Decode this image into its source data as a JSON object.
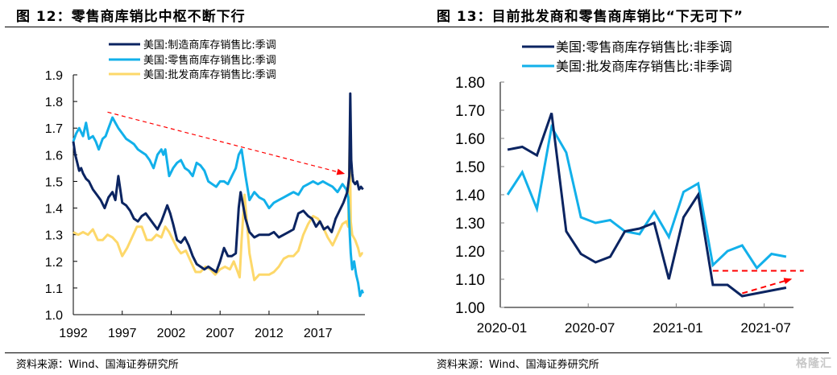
{
  "figures": [
    {
      "title": "图 12：零售商库销比中枢不断下行",
      "source": "资料来源：Wind、国海证券研究所"
    },
    {
      "title": "图 13：目前批发商和零售商库销比“下无可下”",
      "source": "资料来源：Wind、国海证券研究所"
    }
  ],
  "watermark": "格隆汇",
  "colors": {
    "navy": "#0b2461",
    "light_blue": "#12b0ea",
    "yellow": "#fdd86a",
    "red": "#ff0000",
    "axis": "#000000",
    "axis_right": "#7f7f7f"
  },
  "chart_data": [
    {
      "type": "line",
      "title": "图 12：零售商库销比中枢不断下行",
      "xlabel": "",
      "ylabel": "",
      "xlim": [
        1992,
        2021.8
      ],
      "ylim": [
        1.0,
        1.9
      ],
      "yticks": [
        "1.0",
        "1.1",
        "1.2",
        "1.3",
        "1.4",
        "1.5",
        "1.6",
        "1.7",
        "1.8",
        "1.9"
      ],
      "xticks": [
        "1992",
        "1997",
        "2002",
        "2007",
        "2012",
        "2017"
      ],
      "xtick_values": [
        1992,
        1997,
        2002,
        2007,
        2012,
        2017
      ],
      "grid": false,
      "legend_position": "top-center",
      "series": [
        {
          "name": "美国:制造商库存销售比:季调",
          "color_key": "navy",
          "x": [
            1992.0,
            1992.2,
            1992.4,
            1992.6,
            1992.8,
            1993.0,
            1993.3,
            1993.6,
            1994.0,
            1994.4,
            1994.8,
            1995.2,
            1995.6,
            1996.0,
            1996.3,
            1996.6,
            1997.0,
            1997.4,
            1997.8,
            1998.2,
            1998.6,
            1999.0,
            1999.4,
            1999.8,
            2000.2,
            2000.6,
            2001.0,
            2001.3,
            2001.6,
            2001.9,
            2002.2,
            2002.6,
            2003.0,
            2003.4,
            2003.8,
            2004.2,
            2004.6,
            2005.0,
            2005.4,
            2005.8,
            2006.2,
            2006.6,
            2007.0,
            2007.4,
            2007.8,
            2008.2,
            2008.6,
            2008.9,
            2009.1,
            2009.3,
            2009.6,
            2010.0,
            2010.5,
            2011.0,
            2011.5,
            2012.0,
            2012.5,
            2013.0,
            2013.5,
            2014.0,
            2014.5,
            2015.0,
            2015.5,
            2016.0,
            2016.4,
            2016.8,
            2017.2,
            2017.6,
            2018.0,
            2018.4,
            2018.8,
            2019.2,
            2019.6,
            2020.0,
            2020.2,
            2020.3,
            2020.4,
            2020.5,
            2020.6,
            2020.8,
            2021.0,
            2021.2,
            2021.4,
            2021.6
          ],
          "values": [
            1.65,
            1.6,
            1.57,
            1.54,
            1.55,
            1.53,
            1.51,
            1.5,
            1.47,
            1.45,
            1.43,
            1.4,
            1.44,
            1.46,
            1.43,
            1.52,
            1.42,
            1.41,
            1.39,
            1.36,
            1.35,
            1.37,
            1.38,
            1.36,
            1.34,
            1.32,
            1.35,
            1.38,
            1.41,
            1.38,
            1.34,
            1.28,
            1.27,
            1.29,
            1.26,
            1.22,
            1.19,
            1.18,
            1.17,
            1.18,
            1.17,
            1.16,
            1.2,
            1.25,
            1.22,
            1.22,
            1.23,
            1.4,
            1.46,
            1.42,
            1.36,
            1.31,
            1.29,
            1.3,
            1.3,
            1.3,
            1.31,
            1.29,
            1.3,
            1.31,
            1.32,
            1.38,
            1.39,
            1.37,
            1.36,
            1.33,
            1.35,
            1.32,
            1.33,
            1.31,
            1.36,
            1.39,
            1.42,
            1.46,
            1.52,
            1.83,
            1.58,
            1.53,
            1.5,
            1.49,
            1.5,
            1.47,
            1.48,
            1.47
          ]
        },
        {
          "name": "美国:零售商库存销售比:季调",
          "color_key": "light_blue",
          "x": [
            1992.0,
            1992.3,
            1992.6,
            1993.0,
            1993.3,
            1993.6,
            1994.0,
            1994.3,
            1994.6,
            1995.0,
            1995.3,
            1995.6,
            1996.0,
            1996.3,
            1996.6,
            1997.0,
            1997.4,
            1997.8,
            1998.2,
            1998.6,
            1999.0,
            1999.4,
            1999.8,
            2000.2,
            2000.6,
            2001.0,
            2001.2,
            2001.4,
            2001.8,
            2002.2,
            2002.6,
            2003.0,
            2003.4,
            2003.8,
            2004.2,
            2004.6,
            2005.0,
            2005.4,
            2005.8,
            2006.2,
            2006.6,
            2007.0,
            2007.4,
            2007.8,
            2008.2,
            2008.6,
            2008.9,
            2009.2,
            2009.6,
            2010.0,
            2010.5,
            2011.0,
            2011.5,
            2012.0,
            2012.5,
            2013.0,
            2013.5,
            2014.0,
            2014.5,
            2015.0,
            2015.5,
            2016.0,
            2016.5,
            2017.0,
            2017.5,
            2018.0,
            2018.5,
            2019.0,
            2019.5,
            2019.9,
            2020.1,
            2020.25,
            2020.35,
            2020.5,
            2020.7,
            2020.9,
            2021.1,
            2021.3,
            2021.5,
            2021.6
          ],
          "values": [
            1.65,
            1.68,
            1.7,
            1.67,
            1.72,
            1.66,
            1.67,
            1.65,
            1.62,
            1.66,
            1.67,
            1.7,
            1.74,
            1.72,
            1.7,
            1.68,
            1.66,
            1.65,
            1.64,
            1.62,
            1.61,
            1.6,
            1.58,
            1.55,
            1.6,
            1.62,
            1.6,
            1.62,
            1.52,
            1.55,
            1.57,
            1.58,
            1.55,
            1.54,
            1.52,
            1.57,
            1.56,
            1.54,
            1.5,
            1.49,
            1.48,
            1.5,
            1.5,
            1.49,
            1.52,
            1.55,
            1.6,
            1.62,
            1.52,
            1.43,
            1.46,
            1.44,
            1.43,
            1.4,
            1.42,
            1.43,
            1.44,
            1.45,
            1.46,
            1.45,
            1.48,
            1.49,
            1.5,
            1.49,
            1.5,
            1.49,
            1.48,
            1.46,
            1.49,
            1.47,
            1.44,
            1.3,
            1.23,
            1.17,
            1.2,
            1.15,
            1.12,
            1.07,
            1.09,
            1.08
          ]
        },
        {
          "name": "美国:批发商库存销售比:季调",
          "color_key": "yellow",
          "x": [
            1992.0,
            1992.5,
            1993.0,
            1993.5,
            1994.0,
            1994.5,
            1995.0,
            1995.5,
            1996.0,
            1996.5,
            1997.0,
            1997.5,
            1998.0,
            1998.5,
            1999.0,
            1999.5,
            2000.0,
            2000.5,
            2001.0,
            2001.4,
            2001.8,
            2002.2,
            2002.6,
            2003.0,
            2003.5,
            2004.0,
            2004.5,
            2005.0,
            2005.5,
            2006.0,
            2006.5,
            2007.0,
            2007.5,
            2008.0,
            2008.4,
            2008.8,
            2009.0,
            2009.2,
            2009.5,
            2010.0,
            2010.5,
            2011.0,
            2011.5,
            2012.0,
            2012.5,
            2013.0,
            2013.5,
            2014.0,
            2014.5,
            2015.0,
            2015.5,
            2016.0,
            2016.5,
            2017.0,
            2017.5,
            2018.0,
            2018.5,
            2019.0,
            2019.5,
            2019.9,
            2020.1,
            2020.25,
            2020.35,
            2020.5,
            2020.8,
            2021.1,
            2021.3,
            2021.5,
            2021.6
          ],
          "values": [
            1.31,
            1.3,
            1.31,
            1.3,
            1.32,
            1.28,
            1.28,
            1.3,
            1.29,
            1.27,
            1.22,
            1.25,
            1.29,
            1.33,
            1.33,
            1.28,
            1.28,
            1.3,
            1.29,
            1.33,
            1.31,
            1.28,
            1.25,
            1.23,
            1.24,
            1.2,
            1.16,
            1.16,
            1.18,
            1.17,
            1.15,
            1.17,
            1.18,
            1.17,
            1.2,
            1.16,
            1.14,
            1.28,
            1.45,
            1.23,
            1.13,
            1.15,
            1.15,
            1.15,
            1.16,
            1.18,
            1.21,
            1.22,
            1.22,
            1.24,
            1.3,
            1.34,
            1.37,
            1.36,
            1.33,
            1.29,
            1.26,
            1.3,
            1.34,
            1.35,
            1.33,
            1.67,
            1.35,
            1.3,
            1.28,
            1.25,
            1.22,
            1.23,
            1.23
          ]
        }
      ],
      "annotations": [
        {
          "type": "dashed-arrow",
          "color_key": "red",
          "from": [
            1995.5,
            1.76
          ],
          "to": [
            2019.6,
            1.53
          ],
          "description": "downward trend arrow"
        }
      ]
    },
    {
      "type": "line",
      "title": "图 13：目前批发商和零售商库销比“下无可下”",
      "xlabel": "",
      "ylabel": "",
      "categories": [
        "2020-01",
        "2020-02",
        "2020-03",
        "2020-04",
        "2020-05",
        "2020-06",
        "2020-07",
        "2020-08",
        "2020-09",
        "2020-10",
        "2020-11",
        "2020-12",
        "2021-01",
        "2021-02",
        "2021-03",
        "2021-04",
        "2021-05",
        "2021-06",
        "2021-07",
        "2021-08"
      ],
      "xticks": [
        "2020-01",
        "2020-07",
        "2021-01",
        "2021-07"
      ],
      "ylim": [
        1.0,
        1.8
      ],
      "yticks": [
        "1.00",
        "1.10",
        "1.20",
        "1.30",
        "1.40",
        "1.50",
        "1.60",
        "1.70",
        "1.80"
      ],
      "grid": false,
      "legend_position": "top-center",
      "series": [
        {
          "name": "美国:零售商库存销售比:非季调",
          "color_key": "navy",
          "values": [
            1.56,
            1.57,
            1.54,
            1.69,
            1.27,
            1.19,
            1.16,
            1.18,
            1.27,
            1.28,
            1.3,
            1.1,
            1.32,
            1.4,
            1.08,
            1.08,
            1.04,
            1.05,
            1.06,
            1.07
          ]
        },
        {
          "name": "美国:批发商库存销售比:非季调",
          "color_key": "light_blue",
          "values": [
            1.4,
            1.48,
            1.35,
            1.64,
            1.55,
            1.32,
            1.3,
            1.31,
            1.27,
            1.26,
            1.34,
            1.25,
            1.41,
            1.44,
            1.15,
            1.2,
            1.22,
            1.14,
            1.19,
            1.18
          ]
        }
      ],
      "annotations": [
        {
          "type": "dashed-line",
          "color_key": "red",
          "from": [
            14,
            1.13
          ],
          "to": [
            20.2,
            1.13
          ],
          "description": "floor level line"
        },
        {
          "type": "dashed-arrow",
          "color_key": "red",
          "from": [
            16,
            1.05
          ],
          "to": [
            19.3,
            1.1
          ],
          "description": "upward rebound arrow"
        }
      ]
    }
  ]
}
